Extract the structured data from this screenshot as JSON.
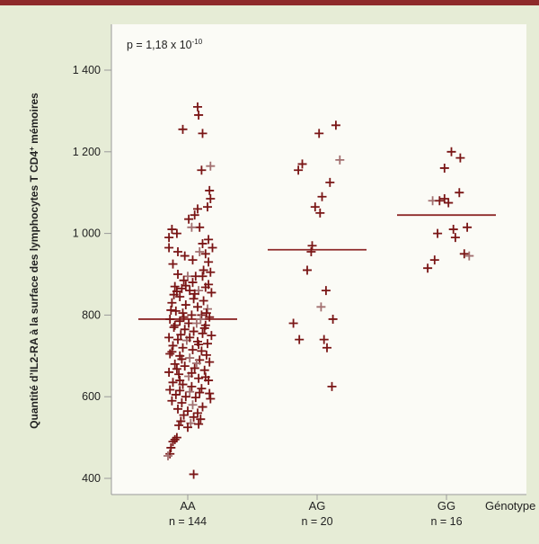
{
  "chart_data": {
    "type": "scatter",
    "annotation": {
      "base": "p = 1,18 x 10",
      "exponent": "-10"
    },
    "ylabel": {
      "part1": "Quantité d’IL2-RA à la surface des lymphocytes T CD4",
      "superscript": "+",
      "part2": " mémoires"
    },
    "xlabel": "Génotype",
    "ylim": [
      390,
      1500
    ],
    "yticks": [
      {
        "value": 400,
        "label": "400"
      },
      {
        "value": 600,
        "label": "600"
      },
      {
        "value": 800,
        "label": "800"
      },
      {
        "value": 1000,
        "label": "1 000"
      },
      {
        "value": 1200,
        "label": "1 200"
      },
      {
        "value": 1400,
        "label": "1 400"
      }
    ],
    "groups": [
      {
        "label": "AA",
        "n_label": "n = 144",
        "median": 790,
        "points": [
          [
            0.1,
            1310
          ],
          [
            0.11,
            1290
          ],
          [
            -0.05,
            1255
          ],
          [
            0.15,
            1245
          ],
          [
            0.23,
            1165
          ],
          [
            0.14,
            1155
          ],
          [
            0.22,
            1105
          ],
          [
            0.23,
            1085
          ],
          [
            0.2,
            1065
          ],
          [
            0.1,
            1060
          ],
          [
            0.01,
            1035
          ],
          [
            0.07,
            1045
          ],
          [
            0.12,
            1015
          ],
          [
            0.04,
            1015
          ],
          [
            -0.16,
            1010
          ],
          [
            -0.11,
            1000
          ],
          [
            -0.19,
            990
          ],
          [
            0.21,
            985
          ],
          [
            0.15,
            975
          ],
          [
            0.25,
            965
          ],
          [
            -0.19,
            965
          ],
          [
            -0.1,
            955
          ],
          [
            0.12,
            955
          ],
          [
            0.18,
            950
          ],
          [
            -0.03,
            945
          ],
          [
            0.05,
            935
          ],
          [
            0.21,
            930
          ],
          [
            -0.15,
            925
          ],
          [
            0.16,
            910
          ],
          [
            0.23,
            905
          ],
          [
            -0.1,
            900
          ],
          [
            0.0,
            895
          ],
          [
            0.08,
            895
          ],
          [
            0.15,
            895
          ],
          [
            -0.04,
            885
          ],
          [
            0.05,
            880
          ],
          [
            0.21,
            875
          ],
          [
            -0.13,
            870
          ],
          [
            -0.06,
            865
          ],
          [
            0.02,
            860
          ],
          [
            0.11,
            860
          ],
          [
            0.24,
            855
          ],
          [
            -0.14,
            850
          ],
          [
            -0.08,
            845
          ],
          [
            0.06,
            840
          ],
          [
            0.16,
            835
          ],
          [
            -0.16,
            830
          ],
          [
            -0.02,
            825
          ],
          [
            0.1,
            820
          ],
          [
            0.2,
            815
          ],
          [
            -0.12,
            810
          ],
          [
            -0.05,
            805
          ],
          [
            0.04,
            800
          ],
          [
            0.14,
            800
          ],
          [
            0.22,
            795
          ],
          [
            -0.18,
            790
          ],
          [
            -0.08,
            785
          ],
          [
            0.01,
            780
          ],
          [
            0.09,
            780
          ],
          [
            0.18,
            775
          ],
          [
            -0.14,
            770
          ],
          [
            -0.03,
            765
          ],
          [
            0.06,
            760
          ],
          [
            0.15,
            755
          ],
          [
            0.24,
            750
          ],
          [
            -0.19,
            745
          ],
          [
            -0.1,
            740
          ],
          [
            -0.01,
            738
          ],
          [
            0.1,
            735
          ],
          [
            0.2,
            730
          ],
          [
            -0.15,
            725
          ],
          [
            -0.05,
            720
          ],
          [
            0.05,
            715
          ],
          [
            0.14,
            712
          ],
          [
            -0.18,
            705
          ],
          [
            -0.08,
            700
          ],
          [
            0.02,
            695
          ],
          [
            0.12,
            690
          ],
          [
            0.22,
            685
          ],
          [
            -0.13,
            680
          ],
          [
            -0.03,
            675
          ],
          [
            0.07,
            670
          ],
          [
            0.17,
            665
          ],
          [
            -0.19,
            660
          ],
          [
            -0.09,
            655
          ],
          [
            0.01,
            650
          ],
          [
            0.11,
            645
          ],
          [
            0.21,
            640
          ],
          [
            -0.15,
            635
          ],
          [
            -0.05,
            630
          ],
          [
            0.04,
            625
          ],
          [
            0.14,
            620
          ],
          [
            -0.18,
            617
          ],
          [
            -0.08,
            615
          ],
          [
            0.02,
            612
          ],
          [
            0.12,
            610
          ],
          [
            0.22,
            608
          ],
          [
            -0.12,
            605
          ],
          [
            -0.02,
            600
          ],
          [
            0.08,
            598
          ],
          [
            0.23,
            595
          ],
          [
            -0.16,
            590
          ],
          [
            -0.06,
            585
          ],
          [
            0.05,
            580
          ],
          [
            0.15,
            575
          ],
          [
            -0.1,
            570
          ],
          [
            0.0,
            565
          ],
          [
            0.1,
            560
          ],
          [
            -0.04,
            555
          ],
          [
            0.06,
            550
          ],
          [
            0.13,
            545
          ],
          [
            -0.07,
            540
          ],
          [
            0.03,
            535
          ],
          [
            0.11,
            533
          ],
          [
            -0.09,
            530
          ],
          [
            0.0,
            525
          ],
          [
            -0.11,
            500
          ],
          [
            -0.13,
            495
          ],
          [
            -0.15,
            490
          ],
          [
            -0.17,
            475
          ],
          [
            -0.18,
            460
          ],
          [
            -0.2,
            455
          ],
          [
            0.06,
            410
          ],
          [
            -0.02,
            872
          ],
          [
            0.18,
            868
          ],
          [
            -0.11,
            858
          ],
          [
            0.07,
            852
          ],
          [
            -0.17,
            812
          ],
          [
            0.19,
            805
          ],
          [
            -0.04,
            795
          ],
          [
            0.13,
            790
          ],
          [
            -0.13,
            775
          ],
          [
            0.17,
            768
          ],
          [
            -0.07,
            752
          ],
          [
            0.02,
            745
          ],
          [
            0.11,
            728
          ],
          [
            -0.16,
            710
          ],
          [
            0.19,
            702
          ],
          [
            -0.06,
            692
          ],
          [
            0.09,
            682
          ],
          [
            -0.11,
            668
          ],
          [
            0.04,
            658
          ],
          [
            0.18,
            648
          ],
          [
            -0.08,
            640
          ]
        ]
      },
      {
        "label": "AG",
        "n_label": "n = 20",
        "median": 960,
        "points": [
          [
            0.19,
            1265
          ],
          [
            0.02,
            1245
          ],
          [
            -0.15,
            1170
          ],
          [
            -0.19,
            1155
          ],
          [
            0.23,
            1180
          ],
          [
            0.13,
            1125
          ],
          [
            0.05,
            1090
          ],
          [
            -0.02,
            1065
          ],
          [
            0.03,
            1050
          ],
          [
            -0.05,
            970
          ],
          [
            -0.06,
            955
          ],
          [
            -0.1,
            910
          ],
          [
            0.09,
            860
          ],
          [
            0.04,
            820
          ],
          [
            -0.24,
            780
          ],
          [
            0.16,
            790
          ],
          [
            -0.18,
            740
          ],
          [
            0.07,
            740
          ],
          [
            0.1,
            720
          ],
          [
            0.15,
            625
          ]
        ]
      },
      {
        "label": "GG",
        "n_label": "n = 16",
        "median": 1045,
        "points": [
          [
            0.05,
            1200
          ],
          [
            0.14,
            1185
          ],
          [
            -0.02,
            1160
          ],
          [
            0.13,
            1100
          ],
          [
            -0.14,
            1080
          ],
          [
            -0.07,
            1080
          ],
          [
            0.02,
            1075
          ],
          [
            -0.02,
            1085
          ],
          [
            -0.09,
            1000
          ],
          [
            0.07,
            1010
          ],
          [
            0.21,
            1015
          ],
          [
            0.09,
            990
          ],
          [
            0.18,
            950
          ],
          [
            0.23,
            945
          ],
          [
            -0.12,
            935
          ],
          [
            -0.19,
            915
          ]
        ]
      }
    ],
    "colors": {
      "point": "#7a1616",
      "point_faded": "#a27070",
      "median": "#8e2a2a",
      "axis": "#9a9a9a",
      "text": "#222222",
      "plot_bg": "#fbfbf6"
    }
  }
}
